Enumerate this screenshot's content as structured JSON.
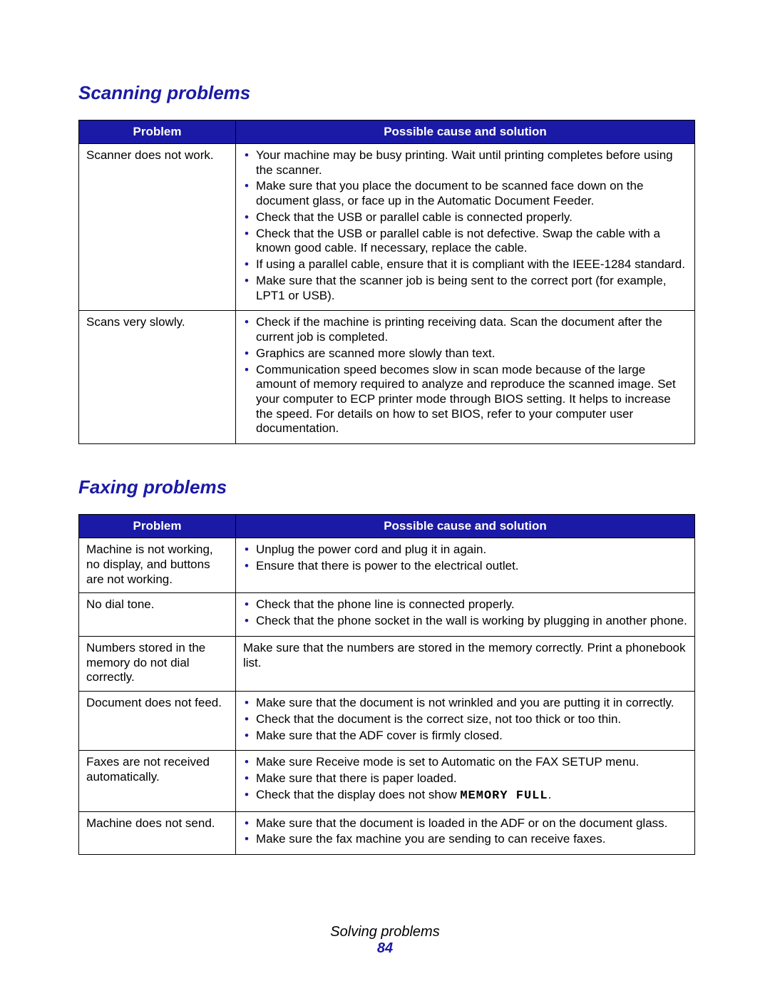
{
  "colors": {
    "heading": "#1a1aa6",
    "header_bg": "#1a1aa6",
    "header_text": "#ffffff",
    "bullet": "#1a1aa6",
    "border": "#000000",
    "page_number": "#1a1aa6"
  },
  "headers": {
    "problem": "Problem",
    "solution": "Possible cause and solution"
  },
  "sections": [
    {
      "title": "Scanning problems",
      "rows": [
        {
          "problem": "Scanner does not work.",
          "solution_type": "list",
          "items": [
            "Your machine may be busy printing. Wait until printing completes before using the scanner.",
            "Make sure that you place the document to be scanned face down on the document glass, or face up in the Automatic Document Feeder.",
            "Check that the USB or parallel cable is connected properly.",
            "Check that the USB or parallel cable is not defective. Swap the cable with a known good cable. If necessary, replace the cable.",
            "If using a parallel cable, ensure that it is compliant with the IEEE-1284 standard.",
            "Make sure that the scanner job is being sent to the correct port (for example, LPT1 or USB)."
          ]
        },
        {
          "problem": "Scans very slowly.",
          "solution_type": "list",
          "items": [
            "Check if the machine is printing receiving data. Scan the document after the current job is completed.",
            "Graphics are scanned more slowly than text.",
            "Communication speed becomes slow in scan mode because of the large amount of memory required to analyze and reproduce the scanned image. Set your computer to ECP printer mode through BIOS setting. It helps to increase the speed. For details on how to set BIOS, refer to your computer user documentation."
          ]
        }
      ]
    },
    {
      "title": "Faxing problems",
      "rows": [
        {
          "problem": "Machine is not working, no display, and buttons are not working.",
          "solution_type": "list",
          "items": [
            "Unplug the power cord and plug it in again.",
            "Ensure that there is power to the electrical outlet."
          ]
        },
        {
          "problem": "No dial tone.",
          "solution_type": "list",
          "items": [
            "Check that the phone line is connected properly.",
            "Check that the phone socket in the wall is working by plugging in another phone."
          ]
        },
        {
          "problem": "Numbers stored in the memory do not dial correctly.",
          "solution_type": "text",
          "text": "Make sure that the numbers are stored in the memory correctly. Print a phonebook list."
        },
        {
          "problem": "Document does not feed.",
          "solution_type": "list",
          "items": [
            "Make sure that the document is not wrinkled and you are putting it in correctly.",
            "Check that the document is the correct size, not too thick or too thin.",
            "Make sure that the ADF cover is firmly closed."
          ]
        },
        {
          "problem": "Faxes are not received automatically.",
          "solution_type": "list",
          "items": [
            "Make sure Receive mode is set to Automatic on the FAX SETUP menu.",
            "Make sure that there is paper loaded.",
            "Check that the display does not show <mono>MEMORY FULL</mono>."
          ]
        },
        {
          "problem": "Machine does not send.",
          "solution_type": "list",
          "items": [
            "Make sure that the document is loaded in the ADF or on the document glass.",
            "Make sure the fax machine you are sending to can receive faxes."
          ]
        }
      ]
    }
  ],
  "footer": {
    "title": "Solving problems",
    "page": "84"
  }
}
